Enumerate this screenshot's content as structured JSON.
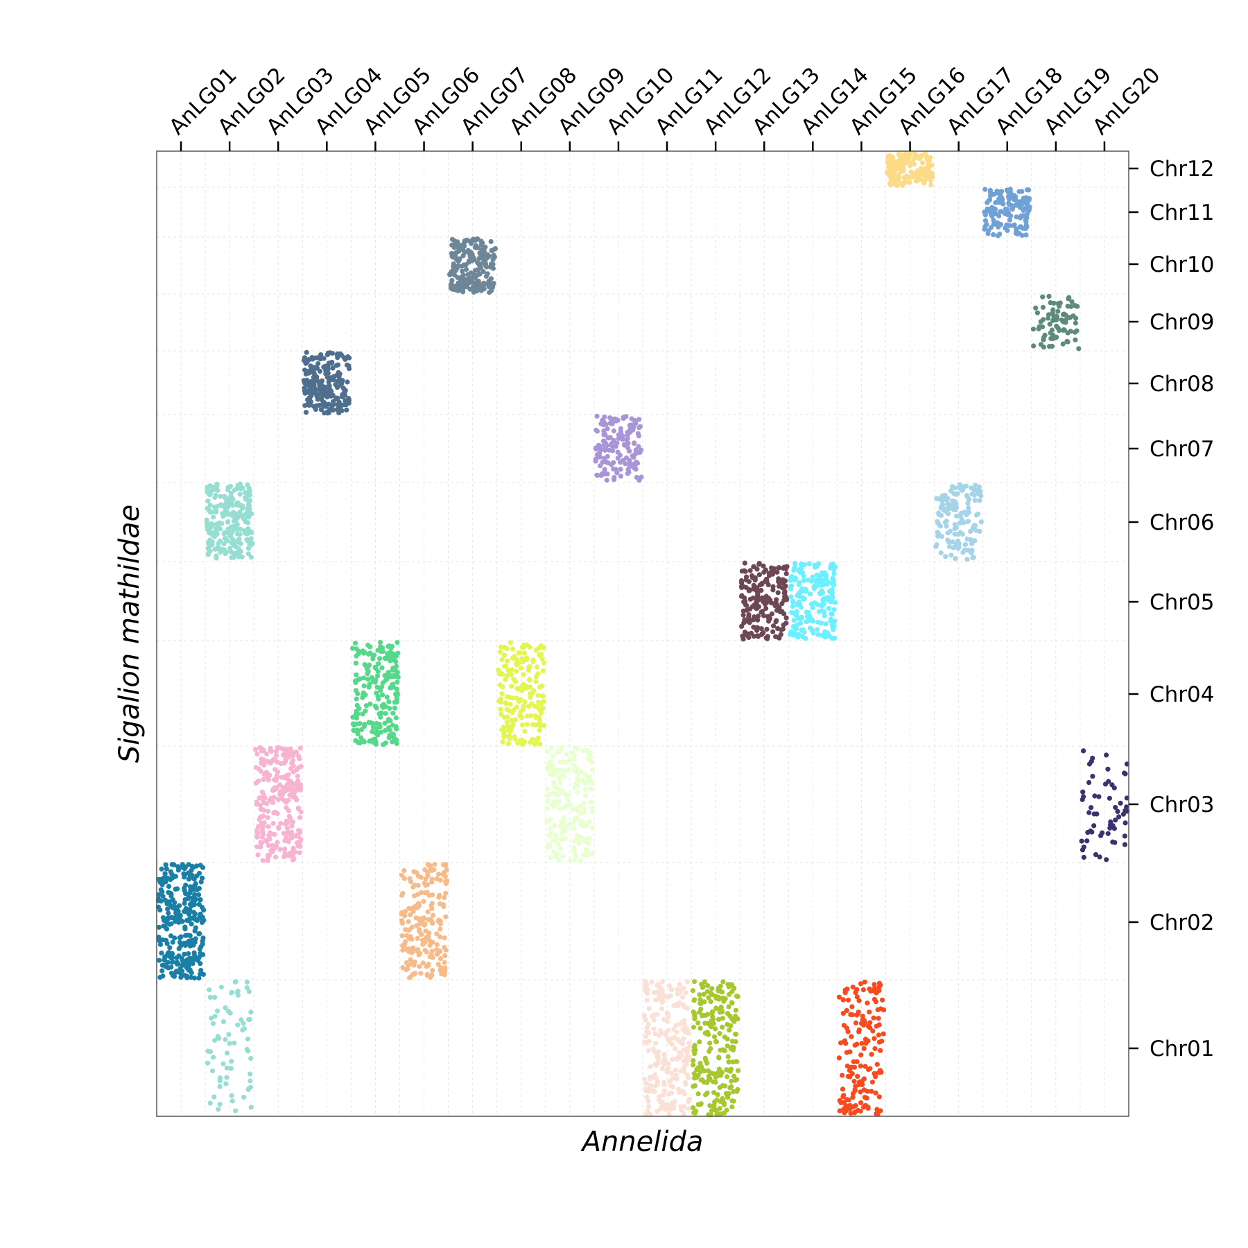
{
  "chart_data": {
    "type": "scatter",
    "title": "",
    "xlabel": "Annelida",
    "ylabel": "Sigalion mathildae",
    "x_categories": [
      "AnLG01",
      "AnLG02",
      "AnLG03",
      "AnLG04",
      "AnLG05",
      "AnLG06",
      "AnLG07",
      "AnLG08",
      "AnLG09",
      "AnLG10",
      "AnLG11",
      "AnLG12",
      "AnLG13",
      "AnLG14",
      "AnLG15",
      "AnLG16",
      "AnLG17",
      "AnLG18",
      "AnLG19",
      "AnLG20"
    ],
    "y_categories": [
      "Chr01",
      "Chr02",
      "Chr03",
      "Chr04",
      "Chr05",
      "Chr06",
      "Chr07",
      "Chr08",
      "Chr09",
      "Chr10",
      "Chr11",
      "Chr12"
    ],
    "x_axis_position": "top",
    "y_axis_position": "right",
    "grid": true,
    "legend": "none",
    "clusters": [
      {
        "x": "AnLG01",
        "y": "Chr02",
        "color": "#1a7fa6",
        "count": 300
      },
      {
        "x": "AnLG02",
        "y": "Chr06",
        "color": "#96ded2",
        "count": 230
      },
      {
        "x": "AnLG02",
        "y": "Chr01",
        "color": "#96ded2",
        "count": 70
      },
      {
        "x": "AnLG03",
        "y": "Chr03",
        "color": "#f8b3d0",
        "count": 260
      },
      {
        "x": "AnLG04",
        "y": "Chr08",
        "color": "#4f6f8f",
        "count": 210
      },
      {
        "x": "AnLG05",
        "y": "Chr04",
        "color": "#55d889",
        "count": 210
      },
      {
        "x": "AnLG06",
        "y": "Chr02",
        "color": "#f7bb8a",
        "count": 200
      },
      {
        "x": "AnLG07",
        "y": "Chr10",
        "color": "#6e8798",
        "count": 200
      },
      {
        "x": "AnLG08",
        "y": "Chr04",
        "color": "#e3f551",
        "count": 190
      },
      {
        "x": "AnLG09",
        "y": "Chr03",
        "color": "#e8ffd0",
        "count": 200
      },
      {
        "x": "AnLG10",
        "y": "Chr07",
        "color": "#a895d8",
        "count": 150
      },
      {
        "x": "AnLG11",
        "y": "Chr01",
        "color": "#fbe0d6",
        "count": 230
      },
      {
        "x": "AnLG12",
        "y": "Chr01",
        "color": "#a6c82e",
        "count": 230
      },
      {
        "x": "AnLG13",
        "y": "Chr05",
        "color": "#6e4755",
        "count": 190
      },
      {
        "x": "AnLG14",
        "y": "Chr05",
        "color": "#6cf0ff",
        "count": 180
      },
      {
        "x": "AnLG15",
        "y": "Chr01",
        "color": "#f84a1e",
        "count": 160
      },
      {
        "x": "AnLG16",
        "y": "Chr12",
        "color": "#fcdb87",
        "count": 150
      },
      {
        "x": "AnLG17",
        "y": "Chr06",
        "color": "#a5d3e8",
        "count": 140
      },
      {
        "x": "AnLG18",
        "y": "Chr11",
        "color": "#6fa0d6",
        "count": 140
      },
      {
        "x": "AnLG19",
        "y": "Chr09",
        "color": "#5e8a7c",
        "count": 80
      },
      {
        "x": "AnLG20",
        "y": "Chr03",
        "color": "#3a3370",
        "count": 60
      }
    ]
  }
}
